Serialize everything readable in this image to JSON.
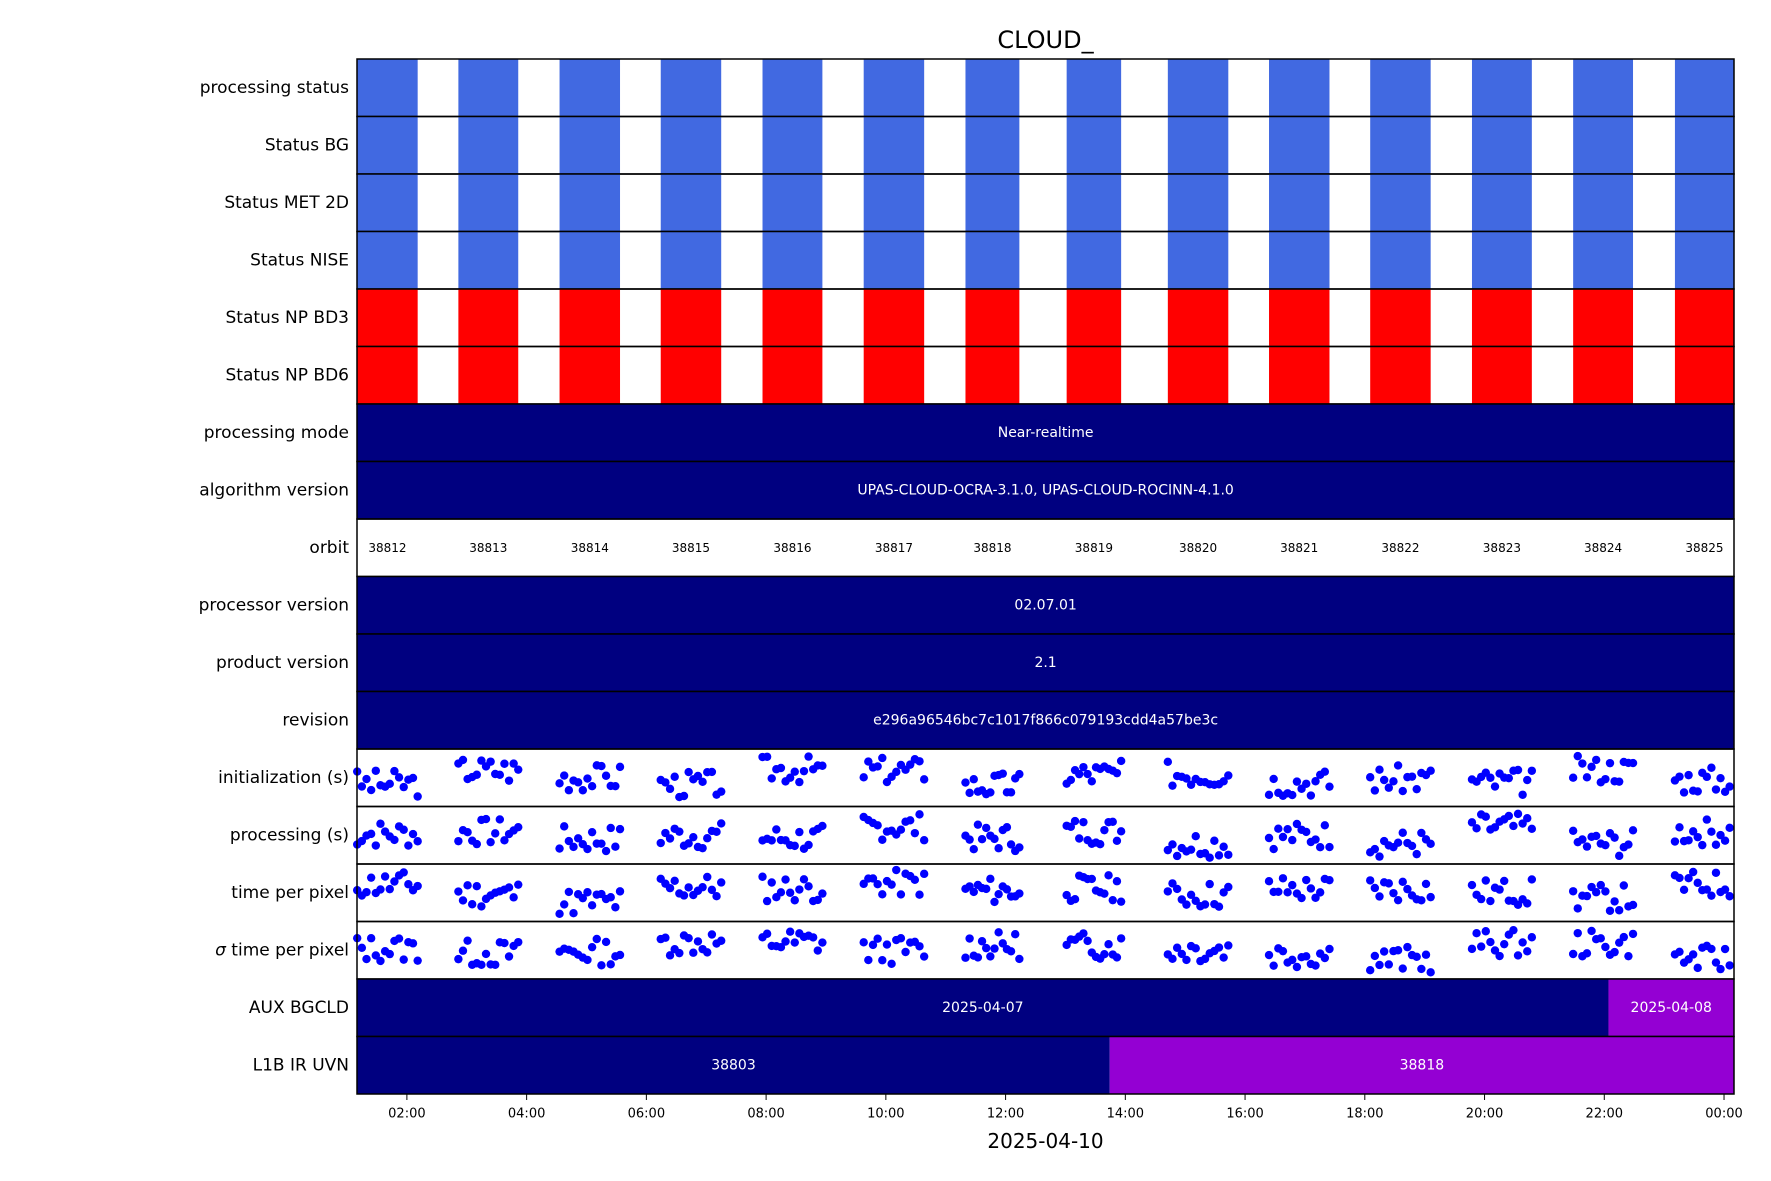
{
  "chart_data": {
    "type": "timeline",
    "title": "CLOUD_",
    "xlabel": "2025-04-10",
    "x_start": "01:10",
    "x_end": "24:10",
    "xticks": [
      "02:00",
      "04:00",
      "06:00",
      "08:00",
      "10:00",
      "12:00",
      "14:00",
      "16:00",
      "18:00",
      "20:00",
      "22:00",
      "00:00"
    ],
    "xtick_hours": [
      2,
      4,
      6,
      8,
      10,
      12,
      14,
      16,
      18,
      20,
      22,
      24
    ],
    "colors": {
      "status_ok": "#4169e1",
      "status_bad": "#ff0000",
      "navy": "#000080",
      "purple": "#9400d3",
      "scatter": "#0000ff"
    },
    "orbits": [
      {
        "number": "38812",
        "start": 1.17,
        "end": 2.18
      },
      {
        "number": "38813",
        "start": 2.86,
        "end": 3.86
      },
      {
        "number": "38814",
        "start": 4.55,
        "end": 5.56
      },
      {
        "number": "38815",
        "start": 6.24,
        "end": 7.25
      },
      {
        "number": "38816",
        "start": 7.94,
        "end": 8.94
      },
      {
        "number": "38817",
        "start": 9.63,
        "end": 10.64
      },
      {
        "number": "38818",
        "start": 11.33,
        "end": 12.23
      },
      {
        "number": "38819",
        "start": 13.02,
        "end": 13.93
      },
      {
        "number": "38820",
        "start": 14.71,
        "end": 15.72
      },
      {
        "number": "38821",
        "start": 16.4,
        "end": 17.41
      },
      {
        "number": "38822",
        "start": 18.09,
        "end": 19.1
      },
      {
        "number": "38823",
        "start": 19.79,
        "end": 20.79
      },
      {
        "number": "38824",
        "start": 21.48,
        "end": 22.48
      },
      {
        "number": "38825",
        "start": 23.18,
        "end": 24.17
      }
    ],
    "rows": [
      {
        "label": "processing status",
        "kind": "status",
        "color": "status_ok"
      },
      {
        "label": "Status BG",
        "kind": "status",
        "color": "status_ok"
      },
      {
        "label": "Status MET 2D",
        "kind": "status",
        "color": "status_ok"
      },
      {
        "label": "Status NISE",
        "kind": "status",
        "color": "status_ok"
      },
      {
        "label": "Status NP BD3",
        "kind": "status",
        "color": "status_bad"
      },
      {
        "label": "Status NP BD6",
        "kind": "status",
        "color": "status_bad"
      },
      {
        "label": "processing mode",
        "kind": "segments",
        "segments": [
          {
            "text": "Near-realtime",
            "start": 1.17,
            "end": 24.17,
            "color": "navy"
          }
        ]
      },
      {
        "label": "algorithm version",
        "kind": "segments",
        "segments": [
          {
            "text": "UPAS-CLOUD-OCRA-3.1.0, UPAS-CLOUD-ROCINN-4.1.0",
            "start": 1.17,
            "end": 24.17,
            "color": "navy"
          }
        ]
      },
      {
        "label": "orbit",
        "kind": "orbit"
      },
      {
        "label": "processor version",
        "kind": "segments",
        "segments": [
          {
            "text": "02.07.01",
            "start": 1.17,
            "end": 24.17,
            "color": "navy"
          }
        ]
      },
      {
        "label": "product version",
        "kind": "segments",
        "segments": [
          {
            "text": "2.1",
            "start": 1.17,
            "end": 24.17,
            "color": "navy"
          }
        ]
      },
      {
        "label": "revision",
        "kind": "segments",
        "segments": [
          {
            "text": "e296a96546bc7c1017f866c079193cdd4a57be3c",
            "start": 1.17,
            "end": 24.17,
            "color": "navy"
          }
        ]
      },
      {
        "label": "initialization (s)",
        "kind": "scatter",
        "seed": 3
      },
      {
        "label": "processing (s)",
        "kind": "scatter",
        "seed": 7
      },
      {
        "label": "time per pixel",
        "kind": "scatter",
        "seed": 11
      },
      {
        "label": "σ time per pixel",
        "kind": "scatter",
        "seed": 13,
        "sigma_prefix": "σ",
        "label_rest": " time per pixel"
      },
      {
        "label": "AUX BGCLD",
        "kind": "segments",
        "segments": [
          {
            "text": "2025-04-07",
            "start": 1.17,
            "end": 22.07,
            "color": "navy"
          },
          {
            "text": "2025-04-08",
            "start": 22.07,
            "end": 24.17,
            "color": "purple"
          }
        ]
      },
      {
        "label": "L1B IR UVN",
        "kind": "segments",
        "segments": [
          {
            "text": "38803",
            "start": 1.17,
            "end": 13.74,
            "color": "navy"
          },
          {
            "text": "38818",
            "start": 13.74,
            "end": 24.17,
            "color": "purple"
          }
        ]
      }
    ]
  }
}
